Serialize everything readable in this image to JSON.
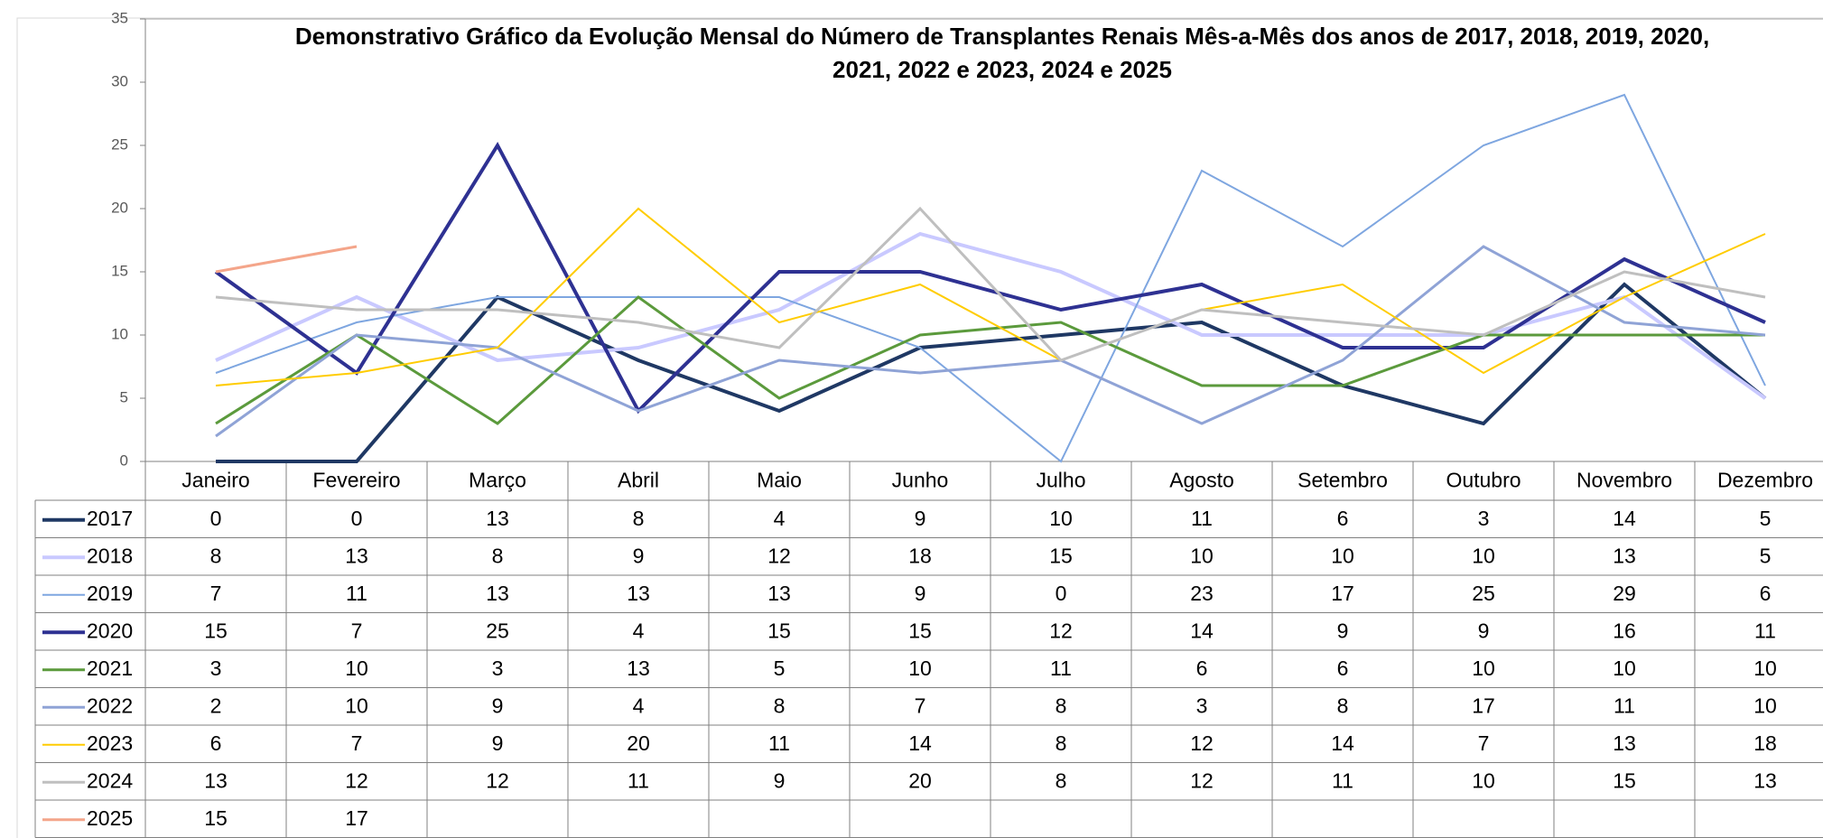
{
  "chart_data": {
    "type": "line",
    "title": [
      "Demonstrativo Gráfico da Evolução Mensal do Número de Transplantes Renais Mês-a-Mês dos anos de  2017, 2018, 2019, 2020,",
      "2021, 2022 e 2023, 2024 e 2025"
    ],
    "categories": [
      "Janeiro",
      "Fevereiro",
      "Março",
      "Abril",
      "Maio",
      "Junho",
      "Julho",
      "Agosto",
      "Setembro",
      "Outubro",
      "Novembro",
      "Dezembro"
    ],
    "ylim": [
      0,
      35
    ],
    "yticks": [
      0,
      5,
      10,
      15,
      20,
      25,
      30,
      35
    ],
    "grid": false,
    "series": [
      {
        "name": "2017",
        "color": "#1f3864",
        "width": 4,
        "values": [
          0,
          0,
          13,
          8,
          4,
          9,
          10,
          11,
          6,
          3,
          14,
          5
        ]
      },
      {
        "name": "2018",
        "color": "#c9c9ff",
        "width": 4,
        "values": [
          8,
          13,
          8,
          9,
          12,
          18,
          15,
          10,
          10,
          10,
          13,
          5
        ]
      },
      {
        "name": "2019",
        "color": "#7ea6e0",
        "width": 2,
        "values": [
          7,
          11,
          13,
          13,
          13,
          9,
          0,
          23,
          17,
          25,
          29,
          6
        ]
      },
      {
        "name": "2020",
        "color": "#2e3192",
        "width": 4,
        "values": [
          15,
          7,
          25,
          4,
          15,
          15,
          12,
          14,
          9,
          9,
          16,
          11
        ]
      },
      {
        "name": "2021",
        "color": "#5b9a3c",
        "width": 3,
        "values": [
          3,
          10,
          3,
          13,
          5,
          10,
          11,
          6,
          6,
          10,
          10,
          10
        ]
      },
      {
        "name": "2022",
        "color": "#8fa3d6",
        "width": 3,
        "values": [
          2,
          10,
          9,
          4,
          8,
          7,
          8,
          3,
          8,
          17,
          11,
          10
        ]
      },
      {
        "name": "2023",
        "color": "#ffcc00",
        "width": 2,
        "values": [
          6,
          7,
          9,
          20,
          11,
          14,
          8,
          12,
          14,
          7,
          13,
          18
        ]
      },
      {
        "name": "2024",
        "color": "#bfbfbf",
        "width": 3,
        "values": [
          13,
          12,
          12,
          11,
          9,
          20,
          8,
          12,
          11,
          10,
          15,
          13
        ]
      },
      {
        "name": "2025",
        "color": "#f4a58a",
        "width": 3,
        "values": [
          15,
          17,
          null,
          null,
          null,
          null,
          null,
          null,
          null,
          null,
          null,
          null
        ]
      }
    ]
  }
}
